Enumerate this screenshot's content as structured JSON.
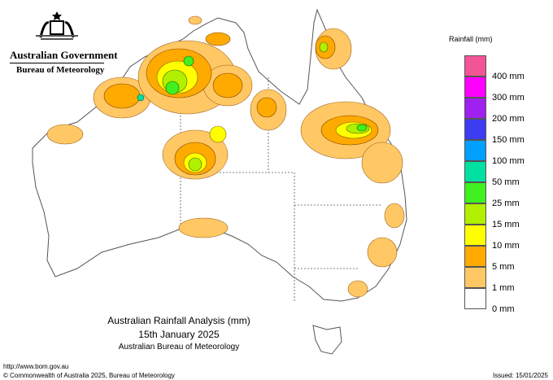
{
  "header": {
    "government": "Australian Government",
    "bureau": "Bureau of Meteorology",
    "logo": "coat-of-arms"
  },
  "legend": {
    "title": "Rainfall (mm)",
    "bins": [
      {
        "label": "400 mm",
        "color": "#f25596"
      },
      {
        "label": "300 mm",
        "color": "#ff00ff"
      },
      {
        "label": "200 mm",
        "color": "#a020f0"
      },
      {
        "label": "150 mm",
        "color": "#3c3cf0"
      },
      {
        "label": "100 mm",
        "color": "#00a0ff"
      },
      {
        "label": "50 mm",
        "color": "#00e0a0"
      },
      {
        "label": "25 mm",
        "color": "#40f020"
      },
      {
        "label": "15 mm",
        "color": "#b0f000"
      },
      {
        "label": "10 mm",
        "color": "#ffff00"
      },
      {
        "label": "5 mm",
        "color": "#ffaa00"
      },
      {
        "label": "1 mm",
        "color": "#ffc864"
      },
      {
        "label": "0 mm",
        "color": "#ffffff"
      }
    ]
  },
  "map": {
    "title": "Australian Rainfall Analysis (mm)",
    "date": "15th January 2025",
    "agency": "Australian Bureau of Meteorology"
  },
  "footer": {
    "url": "http://www.bom.gov.au",
    "copyright": "© Commonwealth of Australia 2025, Bureau of Meteorology",
    "issued": "Issued: 15/01/2025"
  }
}
